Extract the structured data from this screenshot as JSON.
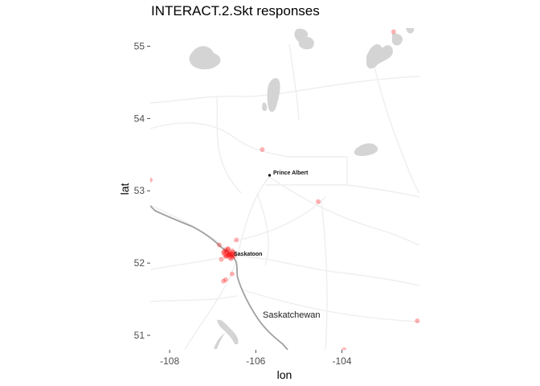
{
  "title": "INTERACT.2.Skt responses",
  "axes": {
    "xlabel": "lon",
    "ylabel": "lat",
    "x_ticks": [
      -108,
      -106,
      -104
    ],
    "x_tick_labels": [
      "-108",
      "-106",
      "-104"
    ],
    "y_ticks": [
      51,
      52,
      53,
      54,
      55
    ],
    "y_tick_labels": [
      "51",
      "52",
      "53",
      "54",
      "55"
    ],
    "xlim": [
      -108.45,
      -102.2
    ],
    "ylim": [
      50.8,
      55.25
    ]
  },
  "map_labels": {
    "prince_albert": "Prince Albert",
    "saskatoon": "Saskatoon",
    "river": "Saskatchewan"
  },
  "places": [
    {
      "name": "Prince Albert",
      "lon": -105.75,
      "lat": 53.2
    },
    {
      "name": "Saskatoon",
      "lon": -106.55,
      "lat": 52.13
    }
  ],
  "colors": {
    "points": "#ff0000",
    "water": "#d4d4d4",
    "roads": "#eeeeee",
    "river": "#a0a0a0",
    "axis_ticks": "#4d4d4d"
  },
  "chart_data": {
    "type": "scatter",
    "title": "INTERACT.2.Skt responses",
    "xlabel": "lon",
    "ylabel": "lat",
    "xlim": [
      -108.45,
      -102.2
    ],
    "ylim": [
      50.8,
      55.25
    ],
    "grid": false,
    "legend": "none",
    "series": [
      {
        "x": [
          -102.8,
          -105.85,
          -104.55,
          -108.45,
          -106.85,
          -106.45,
          -106.7,
          -106.75,
          -106.8,
          -106.55,
          -106.65,
          -102.25,
          -103.95,
          -106.6,
          -106.55,
          -106.65,
          -106.7,
          -106.5,
          -106.6,
          -106.75,
          -106.55,
          -106.62,
          -106.68,
          -106.5,
          -106.72,
          -106.58,
          -106.64,
          -106.52,
          -106.7,
          -106.6,
          -106.66,
          -106.56,
          -106.74,
          -106.54,
          -106.62,
          -106.68
        ],
        "y": [
          55.2,
          53.57,
          52.85,
          53.15,
          52.25,
          52.32,
          51.77,
          51.75,
          52.05,
          51.85,
          52.2,
          51.2,
          50.8,
          52.15,
          52.12,
          52.1,
          52.18,
          52.13,
          52.08,
          52.14,
          52.17,
          52.11,
          52.16,
          52.1,
          52.12,
          52.06,
          52.19,
          52.15,
          52.09,
          52.13,
          52.14,
          52.11,
          52.16,
          52.08,
          52.12,
          52.1
        ]
      }
    ]
  }
}
